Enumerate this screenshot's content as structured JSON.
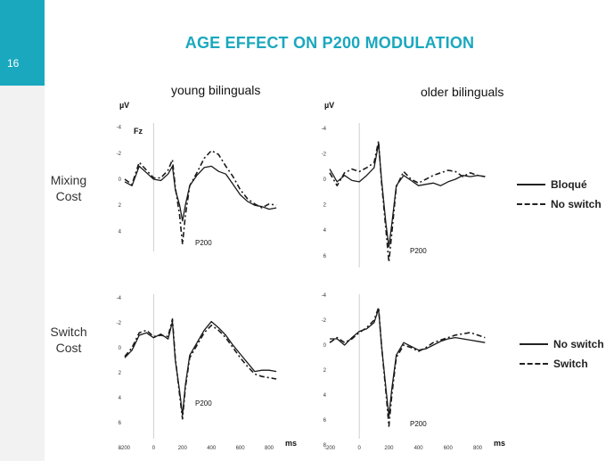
{
  "slide": {
    "page_number": "16",
    "title": "AGE EFFECT ON P200 MODULATION",
    "accent_color": "#1aa8be"
  },
  "columns": [
    "young bilinguals",
    "older bilinguals"
  ],
  "rows": [
    {
      "label_line1": "Mixing",
      "label_line2": "Cost"
    },
    {
      "label_line1": "Switch",
      "label_line2": "Cost"
    }
  ],
  "legends": [
    {
      "items": [
        {
          "label": "Bloqué",
          "style": "solid"
        },
        {
          "label": "No switch",
          "style": "dashed"
        }
      ]
    },
    {
      "items": [
        {
          "label": "No switch",
          "style": "solid"
        },
        {
          "label": "Switch",
          "style": "dashed"
        }
      ]
    }
  ],
  "chart_data": [
    {
      "type": "line",
      "title": "young bilinguals",
      "row": "Mixing Cost",
      "ylabel": "µV",
      "channel_label": "Fz",
      "peak_label": "P200",
      "ylim": [
        -4,
        4
      ],
      "xlim": [
        -200,
        900
      ],
      "y_inverted": true,
      "yticks": [
        -4,
        -2,
        0,
        2,
        4
      ],
      "x": [
        -200,
        -150,
        -100,
        -50,
        0,
        50,
        100,
        130,
        150,
        180,
        200,
        220,
        250,
        300,
        350,
        400,
        450,
        500,
        550,
        600,
        650,
        700,
        750,
        800,
        850
      ],
      "series": [
        {
          "name": "Bloqué",
          "style": "solid",
          "values": [
            0.2,
            0.5,
            -1.0,
            -0.5,
            0.0,
            0.1,
            -0.4,
            -1.0,
            0.8,
            2.0,
            3.2,
            2.0,
            0.5,
            -0.3,
            -0.9,
            -1.0,
            -0.6,
            -0.4,
            0.4,
            1.2,
            1.7,
            2.0,
            2.1,
            2.3,
            2.2
          ]
        },
        {
          "name": "No switch",
          "style": "dashed",
          "values": [
            0.0,
            0.4,
            -1.3,
            -0.7,
            -0.1,
            -0.1,
            -0.7,
            -1.5,
            0.6,
            2.8,
            5.0,
            2.8,
            0.5,
            -0.5,
            -1.6,
            -2.2,
            -1.9,
            -1.0,
            -0.2,
            0.8,
            1.5,
            1.9,
            2.2,
            1.9,
            2.0
          ]
        }
      ]
    },
    {
      "type": "line",
      "title": "older bilinguals",
      "row": "Mixing Cost",
      "ylabel": "µV",
      "peak_label": "P200",
      "ylim": [
        -4,
        6
      ],
      "xlim": [
        -200,
        900
      ],
      "y_inverted": true,
      "yticks": [
        -4,
        -2,
        0,
        2,
        4,
        6
      ],
      "x": [
        -200,
        -150,
        -100,
        -50,
        0,
        50,
        100,
        130,
        150,
        180,
        200,
        220,
        250,
        300,
        350,
        400,
        450,
        500,
        550,
        600,
        650,
        700,
        750,
        800,
        850
      ],
      "series": [
        {
          "name": "Bloqué",
          "style": "solid",
          "values": [
            -0.8,
            0.2,
            -0.3,
            0.1,
            0.2,
            -0.3,
            -0.9,
            -2.8,
            0.0,
            3.5,
            5.3,
            3.5,
            0.5,
            -0.3,
            0.1,
            0.5,
            0.4,
            0.3,
            0.5,
            0.2,
            0.0,
            -0.3,
            -0.2,
            -0.3,
            -0.2
          ]
        },
        {
          "name": "No switch",
          "style": "dashed",
          "values": [
            -0.5,
            0.5,
            -0.5,
            -0.8,
            -0.6,
            -0.9,
            -1.3,
            -3.0,
            0.2,
            4.0,
            6.5,
            4.2,
            0.6,
            -0.6,
            0.0,
            0.3,
            0.0,
            -0.3,
            -0.5,
            -0.7,
            -0.6,
            -0.2,
            -0.5,
            -0.3,
            -0.2
          ]
        }
      ]
    },
    {
      "type": "line",
      "title": "young bilinguals",
      "row": "Switch Cost",
      "xlabel": "ms",
      "peak_label": "P200",
      "ylim": [
        -4,
        8
      ],
      "xlim": [
        -200,
        900
      ],
      "y_inverted": true,
      "yticks": [
        -4,
        -2,
        0,
        2,
        4,
        6,
        8
      ],
      "xticks": [
        -200,
        0,
        200,
        400,
        600,
        800
      ],
      "x": [
        -200,
        -150,
        -100,
        -50,
        0,
        50,
        100,
        130,
        150,
        180,
        200,
        220,
        250,
        300,
        350,
        400,
        450,
        500,
        550,
        600,
        650,
        700,
        750,
        800,
        850
      ],
      "series": [
        {
          "name": "No switch",
          "style": "solid",
          "values": [
            0.8,
            0.2,
            -1.0,
            -1.2,
            -0.8,
            -1.1,
            -0.7,
            -2.1,
            1.0,
            3.5,
            5.4,
            3.0,
            0.6,
            -0.4,
            -1.4,
            -2.1,
            -1.6,
            -1.0,
            -0.2,
            0.5,
            1.2,
            1.9,
            1.8,
            1.8,
            1.9
          ]
        },
        {
          "name": "Switch",
          "style": "dashed",
          "values": [
            0.7,
            0.0,
            -1.2,
            -1.4,
            -0.9,
            -1.0,
            -0.9,
            -2.3,
            0.8,
            3.8,
            5.7,
            3.2,
            0.8,
            -0.2,
            -1.2,
            -1.8,
            -1.4,
            -0.8,
            0.0,
            0.8,
            1.5,
            2.1,
            2.3,
            2.4,
            2.5
          ]
        }
      ]
    },
    {
      "type": "line",
      "title": "older bilinguals",
      "row": "Switch Cost",
      "xlabel": "ms",
      "peak_label": "P200",
      "ylim": [
        -4,
        8
      ],
      "xlim": [
        -200,
        900
      ],
      "y_inverted": true,
      "yticks": [
        -4,
        -2,
        0,
        2,
        4,
        6,
        8
      ],
      "xticks": [
        -200,
        0,
        200,
        400,
        600,
        800
      ],
      "x": [
        -200,
        -150,
        -100,
        -50,
        0,
        50,
        100,
        130,
        150,
        180,
        200,
        220,
        250,
        300,
        350,
        400,
        450,
        500,
        550,
        600,
        650,
        700,
        750,
        800,
        850
      ],
      "series": [
        {
          "name": "No switch",
          "style": "solid",
          "values": [
            -0.5,
            -0.5,
            0.0,
            -0.6,
            -1.1,
            -1.3,
            -1.8,
            -2.9,
            0.0,
            3.5,
            5.7,
            3.5,
            0.8,
            -0.2,
            0.1,
            0.4,
            0.3,
            0.0,
            -0.3,
            -0.5,
            -0.6,
            -0.5,
            -0.4,
            -0.3,
            -0.2
          ]
        },
        {
          "name": "Switch",
          "style": "dashed",
          "values": [
            -0.2,
            -0.6,
            -0.2,
            -0.5,
            -1.0,
            -1.4,
            -2.0,
            -3.0,
            0.0,
            3.8,
            6.5,
            4.0,
            1.0,
            0.0,
            0.2,
            0.5,
            0.2,
            -0.2,
            -0.4,
            -0.6,
            -0.8,
            -0.9,
            -1.0,
            -0.8,
            -0.6
          ]
        }
      ]
    }
  ]
}
